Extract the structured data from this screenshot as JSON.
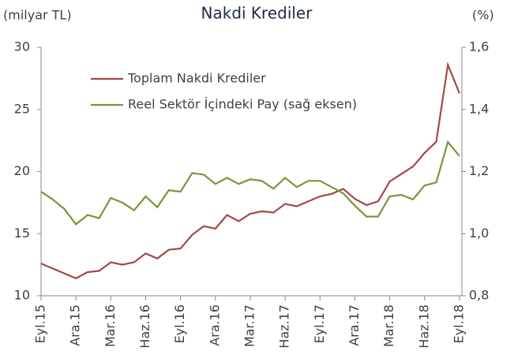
{
  "chart_data": {
    "type": "line",
    "title": "Nakdi Krediler",
    "y_label": "(milyar TL)",
    "y2_label": "(%)",
    "categories": [
      "Eyl.15",
      null,
      null,
      "Ara.15",
      null,
      null,
      "Mar.16",
      null,
      null,
      "Haz.16",
      null,
      null,
      "Eyl.16",
      null,
      null,
      "Ara.16",
      null,
      null,
      "Mar.17",
      null,
      null,
      "Haz.17",
      null,
      null,
      "Eyl.17",
      null,
      null,
      "Ara.17",
      null,
      null,
      "Mar.18",
      null,
      null,
      "Haz.18",
      null,
      null,
      "Eyl.18"
    ],
    "series": [
      {
        "name": "Toplam Nakdi Krediler",
        "color": "#a5474b",
        "values": [
          12.6,
          12.2,
          11.8,
          11.4,
          11.9,
          12.0,
          12.7,
          12.5,
          12.7,
          13.4,
          13.0,
          13.7,
          13.8,
          14.9,
          15.6,
          15.4,
          16.5,
          16.0,
          16.6,
          16.8,
          16.7,
          17.4,
          17.2,
          17.6,
          18.0,
          18.2,
          18.6,
          17.8,
          17.3,
          17.6,
          19.2,
          19.8,
          20.4,
          21.5,
          22.4,
          28.6,
          26.3
        ]
      },
      {
        "name": "Reel Sektör İçindeki Pay (sağ eksen)",
        "color": "#78973b",
        "axis": "y2",
        "values": [
          1.135,
          1.11,
          1.08,
          1.03,
          1.06,
          1.05,
          1.115,
          1.1,
          1.075,
          1.12,
          1.085,
          1.14,
          1.135,
          1.195,
          1.19,
          1.16,
          1.18,
          1.16,
          1.175,
          1.17,
          1.145,
          1.18,
          1.15,
          1.17,
          1.17,
          1.15,
          1.13,
          1.09,
          1.055,
          1.055,
          1.12,
          1.125,
          1.11,
          1.155,
          1.165,
          1.295,
          1.25
        ]
      }
    ],
    "ylim": [
      10,
      30
    ],
    "yticks": [
      10,
      15,
      20,
      25,
      30
    ],
    "y2lim": [
      0.8,
      1.6
    ],
    "y2ticks": [
      {
        "value": 0.8,
        "label": "0,8"
      },
      {
        "value": 1.0,
        "label": "1,0"
      },
      {
        "value": 1.2,
        "label": "1,2"
      },
      {
        "value": 1.4,
        "label": "1,4"
      },
      {
        "value": 1.6,
        "label": "1,6"
      }
    ],
    "legend": "upper left"
  }
}
